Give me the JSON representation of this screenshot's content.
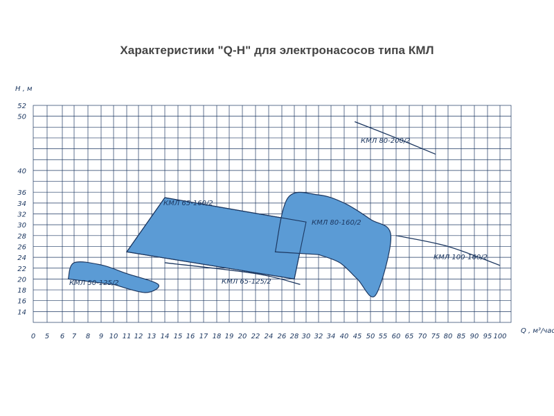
{
  "chart_data": {
    "type": "line",
    "title": "Характеристики \"Q-H\" для электронасосов типа КМЛ",
    "xlabel": "Q , м³/час",
    "ylabel": "H , м",
    "x_ticks": [
      "0",
      "5",
      "6",
      "7",
      "8",
      "9",
      "10",
      "11",
      "12",
      "13",
      "14",
      "15",
      "16",
      "17",
      "18",
      "19",
      "20",
      "22",
      "24",
      "26",
      "28",
      "30",
      "32",
      "34",
      "40",
      "45",
      "50",
      "55",
      "60",
      "65",
      "70",
      "75",
      "80",
      "85",
      "90",
      "95",
      "100"
    ],
    "y_ticks": [
      "14",
      "16",
      "18",
      "20",
      "22",
      "24",
      "26",
      "28",
      "30",
      "32",
      "34",
      "36",
      "40",
      "50",
      "52"
    ],
    "xlim": [
      0,
      100
    ],
    "ylim": [
      12,
      52
    ],
    "grid": true,
    "series": [
      {
        "name": "КМЛ 50-125/2",
        "kind": "region",
        "outline": [
          [
            6.5,
            20
          ],
          [
            7,
            23
          ],
          [
            9,
            22.6
          ],
          [
            11,
            21
          ],
          [
            13.5,
            19
          ],
          [
            12.5,
            17.5
          ],
          [
            10,
            19
          ],
          [
            6.5,
            20
          ]
        ]
      },
      {
        "name": "КМЛ 65-160/2",
        "kind": "region",
        "outline": [
          [
            11,
            25
          ],
          [
            14,
            35
          ],
          [
            30,
            30.5
          ],
          [
            28,
            20
          ],
          [
            11,
            25
          ]
        ]
      },
      {
        "name": "КМЛ 65-125/2",
        "kind": "curve",
        "points": [
          [
            14,
            23
          ],
          [
            22,
            21
          ],
          [
            29,
            19
          ]
        ]
      },
      {
        "name": "КМЛ 80-160/2",
        "kind": "region",
        "outline": [
          [
            25,
            25
          ],
          [
            27,
            35
          ],
          [
            32,
            35.5
          ],
          [
            40,
            34
          ],
          [
            50,
            31
          ],
          [
            58,
            28
          ],
          [
            52,
            17
          ],
          [
            45,
            20
          ],
          [
            38,
            23
          ],
          [
            32,
            24.5
          ],
          [
            25,
            25
          ]
        ]
      },
      {
        "name": "КМЛ 80-200/2",
        "kind": "curve",
        "points": [
          [
            44,
            49
          ],
          [
            60,
            46
          ],
          [
            75,
            43
          ]
        ]
      },
      {
        "name": "КМЛ 100-160/2",
        "kind": "curve",
        "points": [
          [
            60,
            28
          ],
          [
            80,
            26
          ],
          [
            100,
            22.5
          ]
        ]
      }
    ]
  }
}
